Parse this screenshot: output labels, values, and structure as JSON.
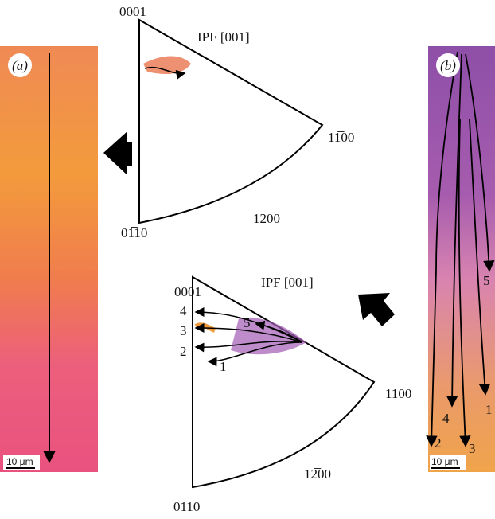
{
  "panel_a": {
    "label": "(a)",
    "scale": "10 μm"
  },
  "panel_b": {
    "label": "(b)",
    "scale": "10 μm",
    "path_labels": [
      "1",
      "2",
      "3",
      "4",
      "5"
    ]
  },
  "ipf_top": {
    "title": "IPF [001]",
    "pole_top": "0001",
    "pole_right": "11̅00",
    "pole_mid": "12̅00",
    "pole_bottom": "01̅10"
  },
  "ipf_bottom": {
    "title": "IPF [001]",
    "pole_top": "0001",
    "pole_right": "11̅00",
    "pole_mid": "12̅00",
    "pole_bottom": "01̅10",
    "path_labels": [
      "1",
      "2",
      "3",
      "4",
      "5"
    ]
  }
}
